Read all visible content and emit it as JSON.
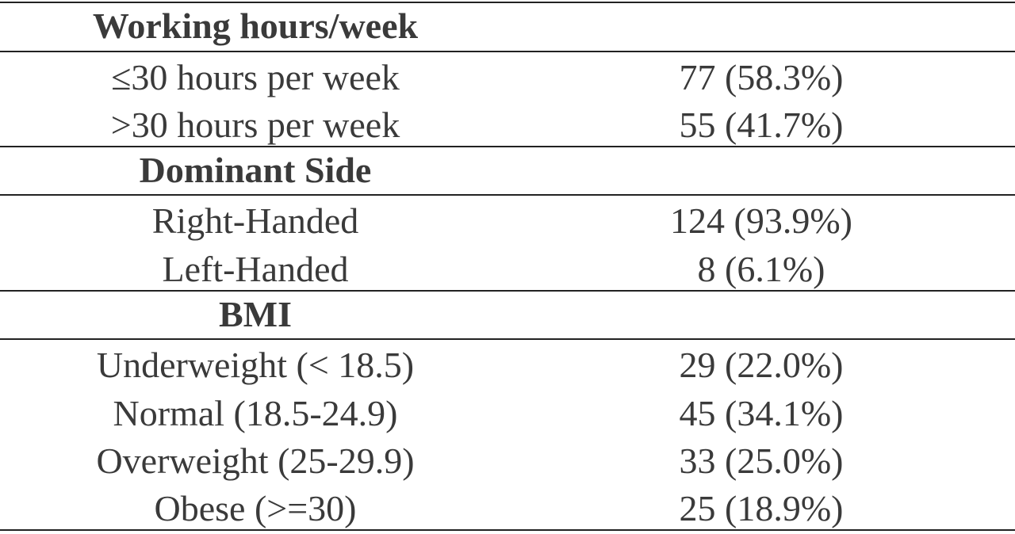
{
  "table": {
    "sections": [
      {
        "title": "Working hours/week",
        "rows": [
          [
            "≤30 hours per week",
            "77 (58.3%)"
          ],
          [
            ">30 hours per week",
            "55 (41.7%)"
          ]
        ]
      },
      {
        "title": "Dominant Side",
        "rows": [
          [
            "Right-Handed",
            "124 (93.9%)"
          ],
          [
            "Left-Handed",
            "8 (6.1%)"
          ]
        ]
      },
      {
        "title": "BMI",
        "rows": [
          [
            "Underweight (< 18.5)",
            "29 (22.0%)"
          ],
          [
            "Normal (18.5-24.9)",
            "45 (34.1%)"
          ],
          [
            "Overweight (25-29.9)",
            "33 (25.0%)"
          ],
          [
            "Obese (>=30)",
            "25 (18.9%)"
          ]
        ]
      }
    ]
  }
}
